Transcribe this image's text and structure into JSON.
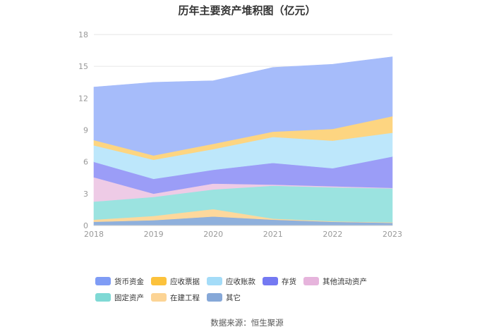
{
  "chart_data": {
    "type": "area",
    "stacked": true,
    "title": "历年主要资产堆积图（亿元）",
    "categories": [
      "2018",
      "2019",
      "2020",
      "2021",
      "2022",
      "2023"
    ],
    "ylim": [
      0,
      18
    ],
    "yticks": [
      0,
      3,
      6,
      9,
      12,
      15,
      18
    ],
    "xlabel": "",
    "ylabel": "",
    "legend_position": "bottom",
    "series": [
      {
        "name": "其它",
        "color": "#8fb0dc",
        "values": [
          0.35,
          0.5,
          0.85,
          0.55,
          0.35,
          0.25
        ]
      },
      {
        "name": "在建工程",
        "color": "#fdd89c",
        "values": [
          0.2,
          0.4,
          0.7,
          0.1,
          0.05,
          0.05
        ]
      },
      {
        "name": "固定资产",
        "color": "#9be3e0",
        "values": [
          1.7,
          1.8,
          1.85,
          3.1,
          3.2,
          3.2
        ]
      },
      {
        "name": "其他流动资产",
        "color": "#eecbe6",
        "values": [
          2.3,
          0.3,
          0.55,
          0.1,
          0.1,
          0.05
        ]
      },
      {
        "name": "存货",
        "color": "#9b9df7",
        "values": [
          1.45,
          1.4,
          1.3,
          2.05,
          1.7,
          2.95
        ]
      },
      {
        "name": "应收账款",
        "color": "#bde7fb",
        "values": [
          1.55,
          1.8,
          1.95,
          2.45,
          2.6,
          2.25
        ]
      },
      {
        "name": "应收票据",
        "color": "#fdd581",
        "values": [
          0.5,
          0.4,
          0.5,
          0.5,
          1.1,
          1.55
        ]
      },
      {
        "name": "货币资金",
        "color": "#a6bcfa",
        "values": [
          5.0,
          6.9,
          5.95,
          6.05,
          6.1,
          5.6
        ]
      }
    ]
  },
  "legend": [
    {
      "label": "货币资金",
      "color": "#7f9cf5"
    },
    {
      "label": "应收票据",
      "color": "#fcc23c"
    },
    {
      "label": "应收账款",
      "color": "#a4dcf8"
    },
    {
      "label": "存货",
      "color": "#7479f2"
    },
    {
      "label": "其他流动资产",
      "color": "#e6b4dc"
    },
    {
      "label": "固定资产",
      "color": "#7fd9d5"
    },
    {
      "label": "在建工程",
      "color": "#fcd495"
    },
    {
      "label": "其它",
      "color": "#86a8d8"
    }
  ],
  "source": "数据来源：恒生聚源"
}
